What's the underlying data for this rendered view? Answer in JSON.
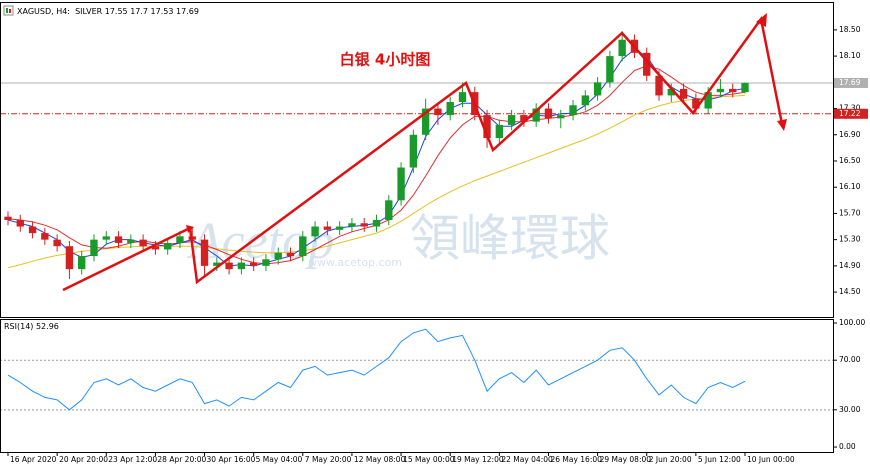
{
  "chart_data": [
    {
      "type": "candlestick",
      "header": "XAGUSD, H4:  SILVER",
      "title": "白银 4小时图",
      "watermark": [
        "Acetop",
        "領峰環球",
        "www.acetop.com"
      ],
      "categories": [
        "16 Apr 2020",
        null,
        null,
        null,
        "20 Apr 20:00",
        null,
        null,
        null,
        "23 Apr 12:00",
        null,
        null,
        null,
        "28 Apr 20:00",
        null,
        null,
        null,
        "30 Apr 16:00",
        null,
        null,
        null,
        "5 May 04:00",
        null,
        null,
        null,
        "7 May 20:00",
        null,
        null,
        null,
        "12 May 08:00",
        null,
        null,
        null,
        "15 May 00:00",
        null,
        null,
        null,
        "19 May 12:00",
        null,
        null,
        null,
        "22 May 04:00",
        null,
        null,
        null,
        "26 May 16:00",
        null,
        null,
        null,
        "29 May 08:00",
        null,
        null,
        null,
        "2 Jun 20:00",
        null,
        null,
        null,
        "5 Jun 12:00",
        null,
        null,
        null,
        "10 Jun 00:00"
      ],
      "open": [
        15.65,
        15.6,
        15.5,
        15.4,
        15.3,
        15.2,
        14.85,
        15.05,
        15.3,
        15.35,
        15.25,
        15.3,
        15.2,
        15.15,
        15.25,
        15.35,
        15.3,
        14.9,
        14.95,
        14.85,
        14.95,
        14.9,
        15.0,
        15.1,
        15.05,
        15.35,
        15.5,
        15.45,
        15.5,
        15.55,
        15.5,
        15.6,
        15.9,
        16.4,
        16.9,
        17.3,
        17.2,
        17.4,
        17.55,
        17.2,
        16.85,
        17.05,
        17.2,
        17.1,
        17.3,
        17.15,
        17.2,
        17.35,
        17.5,
        17.7,
        18.1,
        18.35,
        18.15,
        17.8,
        17.5,
        17.6,
        17.45,
        17.3,
        17.55,
        17.6,
        17.55
      ],
      "high": [
        15.73,
        15.68,
        15.58,
        15.48,
        15.38,
        15.28,
        15.13,
        15.38,
        15.43,
        15.43,
        15.38,
        15.38,
        15.28,
        15.33,
        15.43,
        15.5,
        15.38,
        15.03,
        15.03,
        15.03,
        15.03,
        15.08,
        15.18,
        15.18,
        15.43,
        15.58,
        15.58,
        15.58,
        15.63,
        15.63,
        15.68,
        15.98,
        16.48,
        16.98,
        17.45,
        17.38,
        17.48,
        17.7,
        17.63,
        17.28,
        17.13,
        17.28,
        17.28,
        17.38,
        17.38,
        17.28,
        17.43,
        17.58,
        17.78,
        18.18,
        18.48,
        18.43,
        18.23,
        17.88,
        17.68,
        17.68,
        17.53,
        17.63,
        17.75,
        17.68,
        17.7
      ],
      "low": [
        15.52,
        15.42,
        15.32,
        15.22,
        15.12,
        14.7,
        14.77,
        14.97,
        15.22,
        15.17,
        15.17,
        15.12,
        15.07,
        15.07,
        15.17,
        15.22,
        14.75,
        14.82,
        14.77,
        14.77,
        14.82,
        14.82,
        14.92,
        14.97,
        14.97,
        15.27,
        15.37,
        15.37,
        15.42,
        15.42,
        15.42,
        15.52,
        15.82,
        16.32,
        16.82,
        17.05,
        17.12,
        17.32,
        17.12,
        16.7,
        16.77,
        16.97,
        17.02,
        17.02,
        17.07,
        17.0,
        17.12,
        17.27,
        17.42,
        17.62,
        18.02,
        18.07,
        17.72,
        17.42,
        17.4,
        17.37,
        17.22,
        17.22,
        17.47,
        17.47,
        17.53
      ],
      "close": [
        15.6,
        15.5,
        15.4,
        15.3,
        15.2,
        14.85,
        15.05,
        15.3,
        15.35,
        15.25,
        15.3,
        15.2,
        15.15,
        15.25,
        15.35,
        15.3,
        14.9,
        14.95,
        14.85,
        14.95,
        14.9,
        15.0,
        15.1,
        15.05,
        15.35,
        15.5,
        15.45,
        15.5,
        15.55,
        15.5,
        15.6,
        15.9,
        16.4,
        16.9,
        17.3,
        17.2,
        17.4,
        17.55,
        17.2,
        16.85,
        17.05,
        17.2,
        17.1,
        17.3,
        17.15,
        17.2,
        17.35,
        17.5,
        17.7,
        18.1,
        18.35,
        18.15,
        17.8,
        17.5,
        17.6,
        17.45,
        17.3,
        17.55,
        17.6,
        17.55,
        17.69
      ],
      "up_color": "#1a9a2a",
      "down_color": "#d42020",
      "series": [
        {
          "color": "#e8c020",
          "values": [
            14.87,
            14.92,
            14.97,
            15.02,
            15.06,
            15.09,
            15.12,
            15.14,
            15.16,
            15.18,
            15.19,
            15.2,
            15.2,
            15.2,
            15.2,
            15.2,
            15.18,
            15.16,
            15.14,
            15.12,
            15.11,
            15.1,
            15.1,
            15.11,
            15.13,
            15.16,
            15.2,
            15.25,
            15.3,
            15.35,
            15.4,
            15.48,
            15.58,
            15.7,
            15.82,
            15.93,
            16.03,
            16.12,
            16.2,
            16.27,
            16.34,
            16.41,
            16.48,
            16.55,
            16.62,
            16.69,
            16.76,
            16.83,
            16.91,
            17.0,
            17.1,
            17.2,
            17.28,
            17.34,
            17.39,
            17.42,
            17.45,
            17.47,
            17.48,
            17.49,
            17.5
          ]
        },
        {
          "color": "#e03030",
          "values": [
            15.62,
            15.6,
            15.57,
            15.52,
            15.45,
            15.33,
            15.22,
            15.18,
            15.17,
            15.2,
            15.25,
            15.28,
            15.25,
            15.23,
            15.25,
            15.27,
            15.22,
            15.15,
            15.07,
            15.0,
            14.95,
            14.93,
            14.95,
            14.98,
            15.05,
            15.15,
            15.25,
            15.35,
            15.42,
            15.47,
            15.52,
            15.6,
            15.75,
            15.98,
            16.27,
            16.58,
            16.85,
            17.05,
            17.18,
            17.18,
            17.12,
            17.1,
            17.1,
            17.13,
            17.15,
            17.17,
            17.2,
            17.25,
            17.35,
            17.5,
            17.7,
            17.88,
            17.95,
            17.9,
            17.78,
            17.65,
            17.55,
            17.5,
            17.5,
            17.52,
            17.55
          ]
        },
        {
          "color": "#2040e0",
          "values": [
            15.6,
            15.55,
            15.5,
            15.4,
            15.3,
            15.12,
            15.03,
            15.07,
            15.23,
            15.3,
            15.3,
            15.25,
            15.22,
            15.2,
            15.25,
            15.3,
            15.18,
            15.05,
            14.9,
            14.92,
            14.9,
            14.95,
            15.0,
            15.05,
            15.17,
            15.3,
            15.43,
            15.48,
            15.5,
            15.52,
            15.55,
            15.67,
            15.97,
            16.4,
            16.87,
            17.13,
            17.3,
            17.38,
            17.38,
            17.2,
            17.03,
            17.03,
            17.12,
            17.2,
            17.18,
            17.22,
            17.23,
            17.35,
            17.52,
            17.77,
            18.05,
            18.2,
            18.1,
            17.82,
            17.63,
            17.52,
            17.45,
            17.43,
            17.48,
            17.57,
            17.61
          ]
        }
      ],
      "hline": {
        "value": 17.22,
        "label": "17.22",
        "color": "#d42020"
      },
      "last_color": "#b0b0b0",
      "ylim": [
        14.12,
        18.91
      ],
      "yticks": [
        {
          "value": 14.5,
          "label": "14.50"
        },
        {
          "value": 14.9,
          "label": "14.90"
        },
        {
          "value": 15.3,
          "label": "15.30"
        },
        {
          "value": 15.7,
          "label": "15.70"
        },
        {
          "value": 16.1,
          "label": "16.10"
        },
        {
          "value": 16.5,
          "label": "16.50"
        },
        {
          "value": 16.9,
          "label": "16.90"
        },
        {
          "value": 17.3,
          "label": "17.30"
        },
        {
          "value": 17.7,
          "label": "17.70"
        },
        {
          "value": 18.1,
          "label": "18.10"
        },
        {
          "value": 18.5,
          "label": "18.50"
        }
      ]
    },
    {
      "type": "line",
      "label": "RSI(14)",
      "color": "#1e90ff",
      "values": [
        58,
        52,
        45,
        40,
        38,
        30,
        38,
        52,
        55,
        50,
        55,
        48,
        45,
        50,
        55,
        52,
        35,
        38,
        33,
        40,
        38,
        45,
        52,
        48,
        62,
        65,
        58,
        60,
        62,
        58,
        65,
        72,
        85,
        92,
        95,
        85,
        88,
        90,
        70,
        45,
        55,
        60,
        52,
        62,
        50,
        55,
        60,
        65,
        70,
        78,
        80,
        70,
        55,
        42,
        50,
        40,
        35,
        48,
        52,
        48,
        52.96
      ],
      "levels": [
        70,
        30
      ],
      "ylim": [
        -4,
        102.4
      ],
      "yticks": [
        {
          "value": 100,
          "label": "100.00"
        },
        {
          "value": 70,
          "label": "70.00"
        },
        {
          "value": 30,
          "label": "30.00"
        },
        {
          "value": 0,
          "label": "0.00"
        }
      ]
    }
  ]
}
